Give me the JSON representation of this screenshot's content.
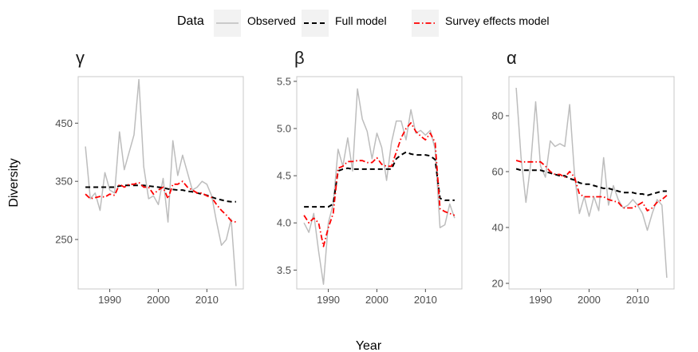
{
  "legend": {
    "title": "Data",
    "items": [
      {
        "label": "Observed",
        "color": "#bdbdbd",
        "style": "solid"
      },
      {
        "label": "Full model",
        "color": "#000000",
        "style": "dashed"
      },
      {
        "label": "Survey effects model",
        "color": "#ff0000",
        "style": "dotdash"
      }
    ]
  },
  "axis_titles": {
    "x": "Year",
    "y": "Diversity"
  },
  "chart_data": [
    {
      "type": "line",
      "title": "γ",
      "xlabel": "Year",
      "ylabel": "Diversity",
      "xlim": [
        1983.5,
        2017.5
      ],
      "ylim": [
        165,
        530
      ],
      "xticks": [
        1990,
        2000,
        2010
      ],
      "yticks": [
        250,
        350,
        450
      ],
      "grid": false,
      "x": [
        1985,
        1986,
        1987,
        1988,
        1989,
        1990,
        1991,
        1992,
        1993,
        1994,
        1995,
        1996,
        1997,
        1998,
        1999,
        2000,
        2001,
        2002,
        2003,
        2004,
        2005,
        2006,
        2007,
        2008,
        2009,
        2010,
        2011,
        2012,
        2013,
        2014,
        2015,
        2016
      ],
      "series": [
        {
          "name": "Observed",
          "values": [
            410,
            320,
            330,
            300,
            365,
            335,
            330,
            435,
            370,
            400,
            430,
            525,
            375,
            320,
            325,
            310,
            355,
            280,
            420,
            360,
            395,
            365,
            335,
            340,
            350,
            345,
            325,
            280,
            240,
            250,
            285,
            170
          ]
        },
        {
          "name": "Full model",
          "values": [
            340,
            340,
            340,
            340,
            340,
            340,
            340,
            342,
            343,
            343,
            343,
            343,
            343,
            342,
            341,
            340,
            339,
            337,
            336,
            335,
            335,
            333,
            332,
            330,
            328,
            326,
            323,
            320,
            318,
            316,
            315,
            315
          ]
        },
        {
          "name": "Survey effects model",
          "values": [
            328,
            320,
            322,
            324,
            323,
            328,
            326,
            345,
            340,
            345,
            345,
            348,
            340,
            340,
            328,
            335,
            340,
            320,
            345,
            345,
            350,
            340,
            335,
            330,
            330,
            325,
            322,
            310,
            300,
            292,
            282,
            280
          ]
        }
      ]
    },
    {
      "type": "line",
      "title": "β",
      "xlabel": "Year",
      "ylabel": "Diversity",
      "xlim": [
        1983.5,
        2017.5
      ],
      "ylim": [
        3.3,
        5.55
      ],
      "xticks": [
        1990,
        2000,
        2010
      ],
      "yticks": [
        3.5,
        4.0,
        4.5,
        5.0,
        5.5
      ],
      "grid": false,
      "x": [
        1985,
        1986,
        1987,
        1988,
        1989,
        1990,
        1991,
        1992,
        1993,
        1994,
        1995,
        1996,
        1997,
        1998,
        1999,
        2000,
        2001,
        2002,
        2003,
        2004,
        2005,
        2006,
        2007,
        2008,
        2009,
        2010,
        2011,
        2012,
        2013,
        2014,
        2015,
        2016
      ],
      "series": [
        {
          "name": "Observed",
          "values": [
            4.0,
            3.9,
            4.1,
            3.7,
            3.35,
            4.0,
            4.2,
            4.78,
            4.6,
            4.9,
            4.55,
            5.42,
            5.1,
            4.97,
            4.68,
            4.95,
            4.8,
            4.45,
            4.85,
            5.08,
            5.08,
            4.88,
            5.2,
            4.95,
            4.98,
            4.93,
            4.98,
            4.78,
            3.95,
            3.98,
            4.2,
            4.05
          ]
        },
        {
          "name": "Full model",
          "values": [
            4.17,
            4.17,
            4.17,
            4.17,
            4.17,
            4.17,
            4.2,
            4.55,
            4.57,
            4.58,
            4.57,
            4.57,
            4.57,
            4.57,
            4.57,
            4.57,
            4.57,
            4.57,
            4.57,
            4.68,
            4.72,
            4.75,
            4.73,
            4.72,
            4.72,
            4.72,
            4.71,
            4.67,
            4.26,
            4.24,
            4.24,
            4.24
          ]
        },
        {
          "name": "Survey effects model",
          "values": [
            4.08,
            4.0,
            4.05,
            4.0,
            3.75,
            3.95,
            4.1,
            4.58,
            4.6,
            4.65,
            4.65,
            4.66,
            4.66,
            4.64,
            4.64,
            4.69,
            4.62,
            4.6,
            4.6,
            4.75,
            4.9,
            5.0,
            5.06,
            4.97,
            4.92,
            4.88,
            4.95,
            4.85,
            4.15,
            4.12,
            4.1,
            4.08
          ]
        }
      ]
    },
    {
      "type": "line",
      "title": "α",
      "xlabel": "Year",
      "ylabel": "Diversity",
      "xlim": [
        1983.5,
        2017.5
      ],
      "ylim": [
        18,
        94
      ],
      "xticks": [
        1990,
        2000,
        2010
      ],
      "yticks": [
        20,
        40,
        60,
        80
      ],
      "grid": false,
      "x": [
        1985,
        1986,
        1987,
        1988,
        1989,
        1990,
        1991,
        1992,
        1993,
        1994,
        1995,
        1996,
        1997,
        1998,
        1999,
        2000,
        2001,
        2002,
        2003,
        2004,
        2005,
        2006,
        2007,
        2008,
        2009,
        2010,
        2011,
        2012,
        2013,
        2014,
        2015,
        2016
      ],
      "series": [
        {
          "name": "Observed",
          "values": [
            90,
            65,
            49,
            63,
            85,
            62,
            58,
            71,
            69,
            70,
            69,
            84,
            59,
            45,
            51,
            44,
            51,
            46,
            65,
            48,
            55,
            50,
            47,
            48,
            50,
            48,
            45,
            39,
            45,
            50,
            48,
            22
          ]
        },
        {
          "name": "Full model",
          "values": [
            61,
            60.5,
            60.5,
            60.5,
            60.5,
            60.5,
            60,
            59.5,
            59,
            58.5,
            58.5,
            57.5,
            57,
            56,
            55.5,
            55.5,
            55,
            54.5,
            54,
            54,
            53.5,
            53,
            52.5,
            52.5,
            52.5,
            52,
            52,
            51.5,
            52,
            52.5,
            53,
            53
          ]
        },
        {
          "name": "Survey effects model",
          "values": [
            64,
            63.5,
            63.5,
            63.5,
            63.5,
            63.5,
            62,
            60,
            59,
            59,
            58,
            60,
            58,
            52,
            51,
            51,
            51,
            51,
            51,
            50,
            49.5,
            49,
            47,
            47,
            47,
            48,
            49,
            46,
            47,
            49,
            50,
            51.5
          ]
        }
      ]
    }
  ]
}
